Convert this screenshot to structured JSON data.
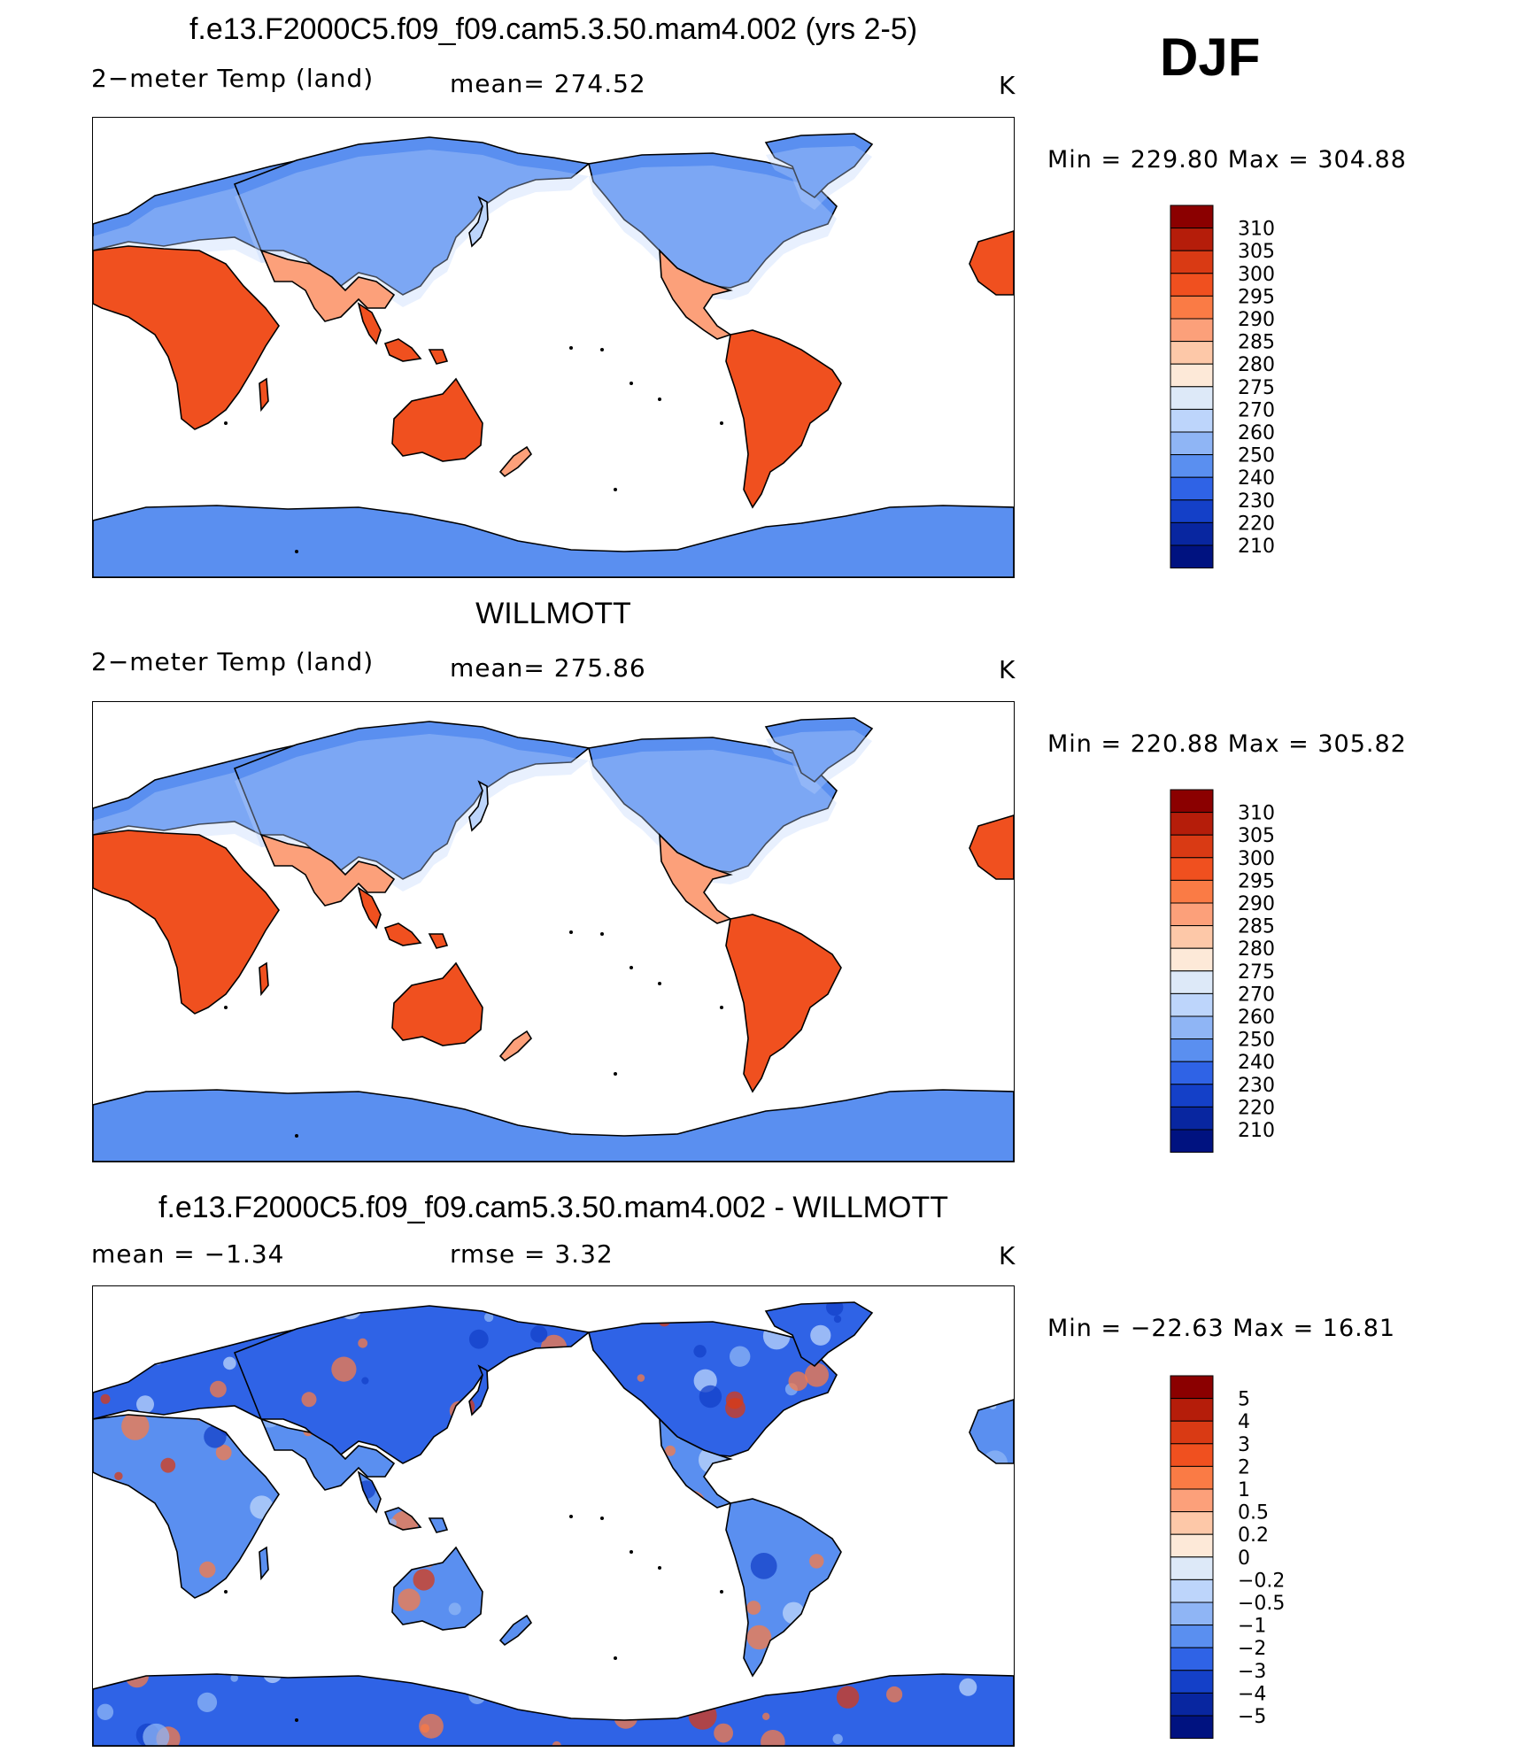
{
  "season": "DJF",
  "panels": [
    {
      "title": "f.e13.F2000C5.f09_f09.cam5.3.50.mam4.002 (yrs 2-5)",
      "left_label": "2−meter Temp (land)",
      "center_label": "mean=  274.52",
      "units": "K",
      "minmax": "Min  =  229.80  Max  =  304.88",
      "colorbar": {
        "labels": [
          "310",
          "305",
          "300",
          "295",
          "290",
          "285",
          "280",
          "275",
          "270",
          "260",
          "250",
          "240",
          "230",
          "220",
          "210"
        ],
        "colors": [
          "#8b0000",
          "#b51d0a",
          "#d93a14",
          "#f0501f",
          "#fa7b45",
          "#fca07a",
          "#fdc8a8",
          "#fde9d8",
          "#dde9f8",
          "#bdd5fb",
          "#8fb5f5",
          "#5a8ff0",
          "#2f63e6",
          "#1440c8",
          "#0826a0",
          "#001280"
        ]
      },
      "land_palette": "temperature"
    },
    {
      "title": "WILLMOTT",
      "left_label": "2−meter Temp (land)",
      "center_label": "mean=  275.86",
      "units": "K",
      "minmax": "Min  =  220.88  Max  =  305.82",
      "colorbar": {
        "labels": [
          "310",
          "305",
          "300",
          "295",
          "290",
          "285",
          "280",
          "275",
          "270",
          "260",
          "250",
          "240",
          "230",
          "220",
          "210"
        ],
        "colors": [
          "#8b0000",
          "#b51d0a",
          "#d93a14",
          "#f0501f",
          "#fa7b45",
          "#fca07a",
          "#fdc8a8",
          "#fde9d8",
          "#dde9f8",
          "#bdd5fb",
          "#8fb5f5",
          "#5a8ff0",
          "#2f63e6",
          "#1440c8",
          "#0826a0",
          "#001280"
        ]
      },
      "land_palette": "temperature"
    },
    {
      "title": "f.e13.F2000C5.f09_f09.cam5.3.50.mam4.002 - WILLMOTT",
      "left_label": "mean  =    −1.34",
      "center_label": "rmse  =      3.32",
      "units": "K",
      "minmax": "Min  =  −22.63  Max  =     16.81",
      "colorbar": {
        "labels": [
          "5",
          "4",
          "3",
          "2",
          "1",
          "0.5",
          "0.2",
          "0",
          "−0.2",
          "−0.5",
          "−1",
          "−2",
          "−3",
          "−4",
          "−5"
        ],
        "colors": [
          "#8b0000",
          "#b51d0a",
          "#d93a14",
          "#f0501f",
          "#fa7b45",
          "#fca07a",
          "#fdc8a8",
          "#fde9d8",
          "#dde9f8",
          "#bdd5fb",
          "#8fb5f5",
          "#5a8ff0",
          "#2f63e6",
          "#1440c8",
          "#0826a0",
          "#001280"
        ]
      },
      "land_palette": "difference"
    }
  ]
}
